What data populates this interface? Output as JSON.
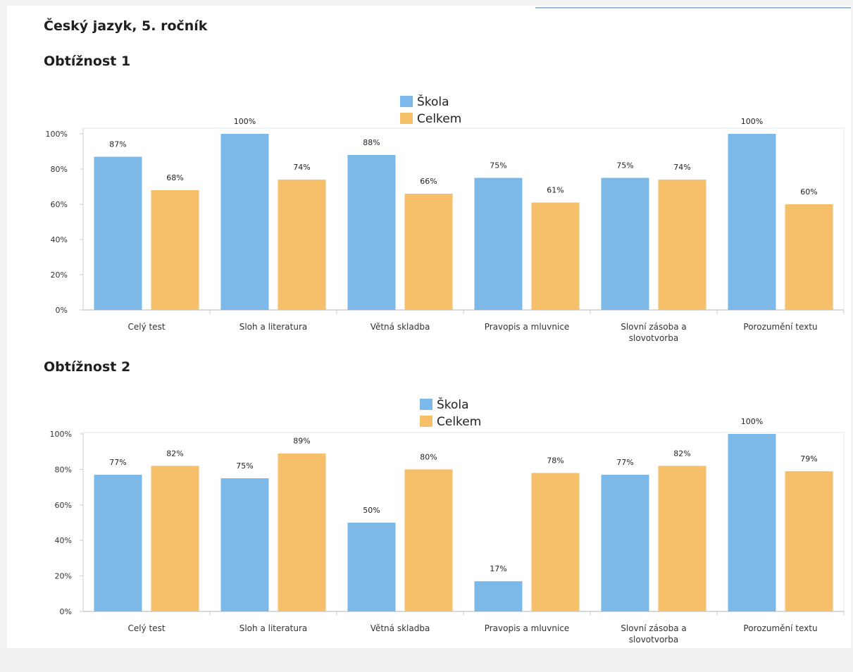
{
  "page": {
    "title": "Český jazyk, 5. ročník"
  },
  "colors": {
    "skola": "#7db9e8",
    "celkem": "#f6bf6a",
    "axis": "#c9cdd6"
  },
  "chart_data": [
    {
      "type": "bar",
      "title": "Obtížnost 1",
      "categories": [
        [
          "Celý test"
        ],
        [
          "Sloh a literatura"
        ],
        [
          "Větná skladba"
        ],
        [
          "Pravopis a mluvnice"
        ],
        [
          "Slovní zásoba a",
          "slovotvorba"
        ],
        [
          "Porozumění textu"
        ]
      ],
      "series": [
        {
          "name": "Škola",
          "values": [
            87,
            100,
            88,
            75,
            75,
            100
          ],
          "labels": [
            "87%",
            "100%",
            "88%",
            "75%",
            "75%",
            "100%"
          ]
        },
        {
          "name": "Celkem",
          "values": [
            68,
            74,
            66,
            61,
            74,
            60
          ],
          "labels": [
            "68%",
            "74%",
            "66%",
            "61%",
            "74%",
            "60%"
          ]
        }
      ],
      "yticks": [
        "0%",
        "20%",
        "40%",
        "60%",
        "80%",
        "100%"
      ],
      "ylim": [
        0,
        100
      ],
      "grid": false,
      "legend": "top-center"
    },
    {
      "type": "bar",
      "title": "Obtížnost 2",
      "categories": [
        [
          "Celý test"
        ],
        [
          "Sloh a literatura"
        ],
        [
          "Větná skladba"
        ],
        [
          "Pravopis a mluvnice"
        ],
        [
          "Slovní zásoba a",
          "slovotvorba"
        ],
        [
          "Porozumění textu"
        ]
      ],
      "series": [
        {
          "name": "Škola",
          "values": [
            77,
            75,
            50,
            17,
            77,
            100
          ],
          "labels": [
            "77%",
            "75%",
            "50%",
            "17%",
            "77%",
            "100%"
          ]
        },
        {
          "name": "Celkem",
          "values": [
            82,
            89,
            80,
            78,
            82,
            79
          ],
          "labels": [
            "82%",
            "89%",
            "80%",
            "78%",
            "82%",
            "79%"
          ]
        }
      ],
      "yticks": [
        "0%",
        "20%",
        "40%",
        "60%",
        "80%",
        "100%"
      ],
      "ylim": [
        0,
        100
      ],
      "grid": false,
      "legend": "top-center"
    }
  ]
}
